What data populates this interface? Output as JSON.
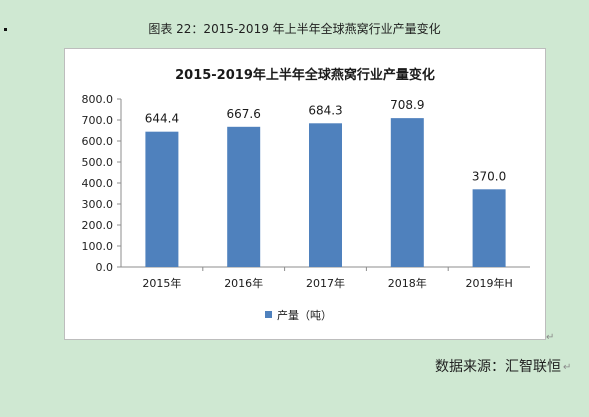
{
  "caption": "图表  22：2015-2019 年上半年全球燕窝行业产量变化",
  "source_note": "数据来源：汇智联恒",
  "chart_data": {
    "type": "bar",
    "title": "2015-2019年上半年全球燕窝行业产量变化",
    "categories": [
      "2015年",
      "2016年",
      "2017年",
      "2018年",
      "2019年H"
    ],
    "series": [
      {
        "name": "产量（吨）",
        "values": [
          644.4,
          667.6,
          684.3,
          708.9,
          370.0
        ],
        "color": "#4f81bd"
      }
    ],
    "data_labels": [
      "644.4",
      "667.6",
      "684.3",
      "708.9",
      "370.0"
    ],
    "yticks": [
      "800.0",
      "700.0",
      "600.0",
      "500.0",
      "400.0",
      "300.0",
      "200.0",
      "100.0",
      "0.0"
    ],
    "ylim": [
      0,
      800
    ],
    "grid": false,
    "legend_position": "bottom"
  }
}
